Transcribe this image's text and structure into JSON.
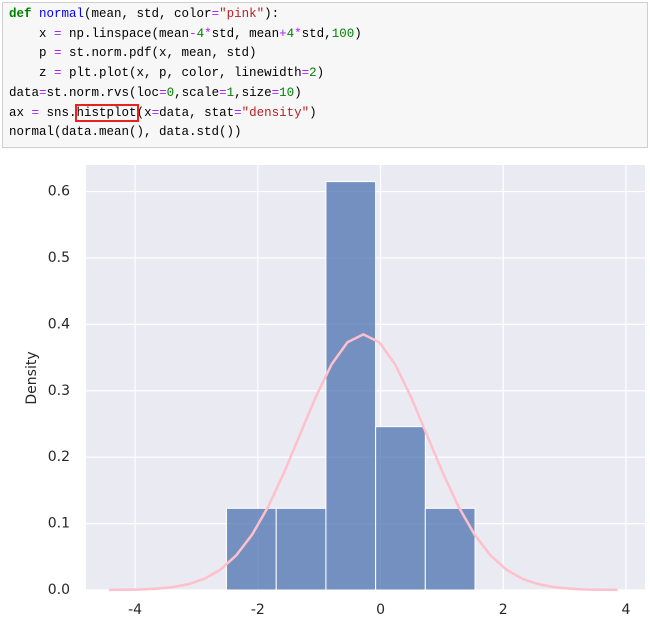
{
  "code": {
    "lines": [
      [
        "def ",
        "normal",
        "(mean, std, color",
        "=",
        "\"pink\"",
        "):"
      ],
      [
        "    x ",
        "=",
        " np.linspace(mean",
        "-",
        "4",
        "*",
        "std, mean",
        "+",
        "4",
        "*",
        "std,",
        "100",
        ")"
      ],
      [
        "    p ",
        "=",
        " st.norm.pdf(x, mean, std)"
      ],
      [
        "    z ",
        "=",
        " plt.plot(x, p, color, linewidth",
        "=",
        "2",
        ")"
      ],
      [
        "data",
        "=",
        "st.norm.rvs(loc",
        "=",
        "0",
        ",scale",
        "=",
        "1",
        ",size",
        "=",
        "10",
        ")"
      ],
      [
        "ax ",
        "=",
        " sns.",
        "histplot",
        "(x",
        "=",
        "data, stat",
        "=",
        "\"density\"",
        ")"
      ],
      [
        "normal(data.mean(), data.std())"
      ]
    ]
  },
  "chart_data": {
    "type": "histogram",
    "ylabel": "Density",
    "bins": [
      -2.51,
      -1.7,
      -0.89,
      -0.08,
      0.73,
      1.54
    ],
    "values": [
      0.123,
      0.123,
      0.615,
      0.246,
      0.123
    ],
    "color": "#4c72b0",
    "xlim": [
      -4.8,
      4.31
    ],
    "xticks": [
      -4,
      -2,
      0,
      2,
      4
    ],
    "ylim": [
      0,
      0.64
    ],
    "yticks": [
      {
        "value": 0,
        "label": "0.0"
      },
      0.1,
      0.2,
      0.3,
      0.4,
      0.5,
      0.6
    ],
    "grid": true,
    "overlay": {
      "type": "line",
      "color": "#ffc0cb",
      "x": [
        -4.424,
        -4.165,
        -3.906,
        -3.647,
        -3.388,
        -3.129,
        -2.87,
        -2.611,
        -2.352,
        -2.093,
        -1.834,
        -1.575,
        -1.316,
        -1.057,
        -0.798,
        -0.539,
        -0.28,
        -0.021,
        0.238,
        0.497,
        0.756,
        1.015,
        1.274,
        1.533,
        1.792,
        2.051,
        2.31,
        2.569,
        2.828,
        3.087,
        3.346,
        3.605,
        3.864
      ],
      "values": [
        0.0001,
        0.0003,
        0.0008,
        0.002,
        0.0043,
        0.0088,
        0.0169,
        0.0306,
        0.0521,
        0.0833,
        0.125,
        0.1763,
        0.2335,
        0.2906,
        0.3398,
        0.3731,
        0.385,
        0.3731,
        0.3398,
        0.2906,
        0.2335,
        0.1763,
        0.125,
        0.0833,
        0.0521,
        0.0306,
        0.0169,
        0.0088,
        0.0043,
        0.002,
        0.0008,
        0.0003,
        0.0001
      ]
    }
  }
}
